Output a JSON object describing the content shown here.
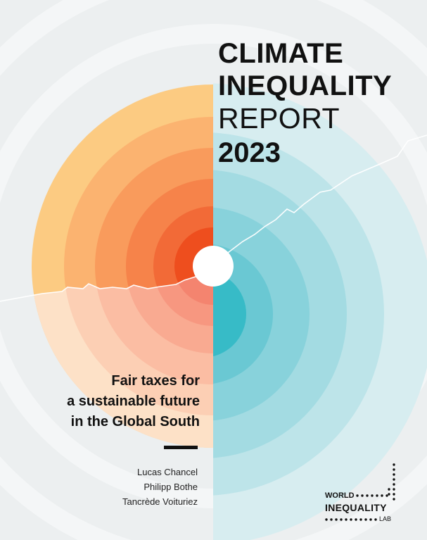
{
  "title": {
    "line1": "CLIMATE",
    "line2": "INEQUALITY",
    "line3": "REPORT",
    "line4": "2023"
  },
  "subtitle": {
    "line1": "Fair taxes for",
    "line2": "a sustainable future",
    "line3": "in the Global South"
  },
  "authors": [
    "Lucas Chancel",
    "Philipp Bothe",
    "Tancrède Voituriez"
  ],
  "logo": {
    "line1": "WORLD",
    "line2": "INEQUALITY",
    "line3": "LAB"
  },
  "colors": {
    "background": "#eceff0",
    "warm_rings": [
      "#fccb82",
      "#fbb370",
      "#f99b5c",
      "#f6834a",
      "#f26a37",
      "#ee4e1e"
    ],
    "warm_lower_rings": [
      "#fde1c7",
      "#fccfb4",
      "#fbbda3",
      "#f9aa91",
      "#f79780",
      "#f4846f"
    ],
    "cool_rings": [
      "#d7edf0",
      "#bde4e9",
      "#a3dbe2",
      "#88d2db",
      "#6ac8d3",
      "#37bbc7"
    ],
    "text": "#111111"
  }
}
